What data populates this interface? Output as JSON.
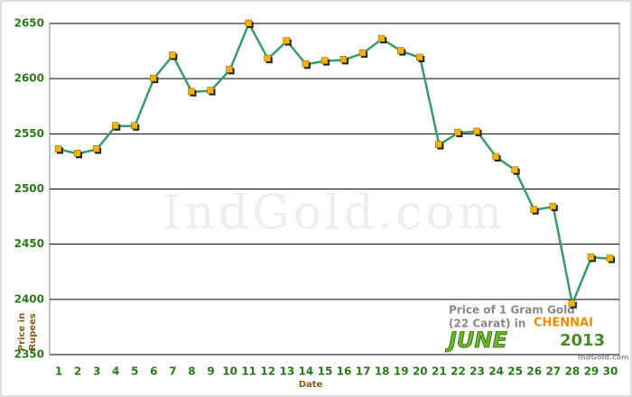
{
  "chart_data": {
    "type": "line",
    "x_label": "Date",
    "y_label": [
      "Price in",
      "Rupees"
    ],
    "watermark": "IndGold.com",
    "inset": {
      "line1": "Price of 1 Gram Gold",
      "line2": "(22 Carat) in",
      "city": "CHENNAI",
      "month": "JUNE",
      "year": "2013",
      "source": "IndGold.com"
    },
    "categories": [
      "1",
      "2",
      "3",
      "4",
      "5",
      "6",
      "7",
      "8",
      "9",
      "10",
      "11",
      "12",
      "13",
      "14",
      "15",
      "16",
      "17",
      "18",
      "19",
      "20",
      "21",
      "22",
      "23",
      "24",
      "25",
      "26",
      "27",
      "28",
      "29",
      "30"
    ],
    "series": [
      {
        "name": "Price",
        "color": "#3a9a68",
        "marker_color": "#f5b400",
        "values": [
          2536,
          2532,
          2536,
          2557,
          2557,
          2600,
          2621,
          2588,
          2589,
          2608,
          2650,
          2618,
          2634,
          2613,
          2616,
          2617,
          2623,
          2636,
          2625,
          2619,
          2540,
          2551,
          2552,
          2529,
          2517,
          2481,
          2484,
          2396,
          2438,
          2437
        ]
      }
    ],
    "ylim": [
      2350,
      2650
    ],
    "yticks": [
      2350,
      2400,
      2450,
      2500,
      2550,
      2600,
      2650
    ],
    "grid": true
  }
}
